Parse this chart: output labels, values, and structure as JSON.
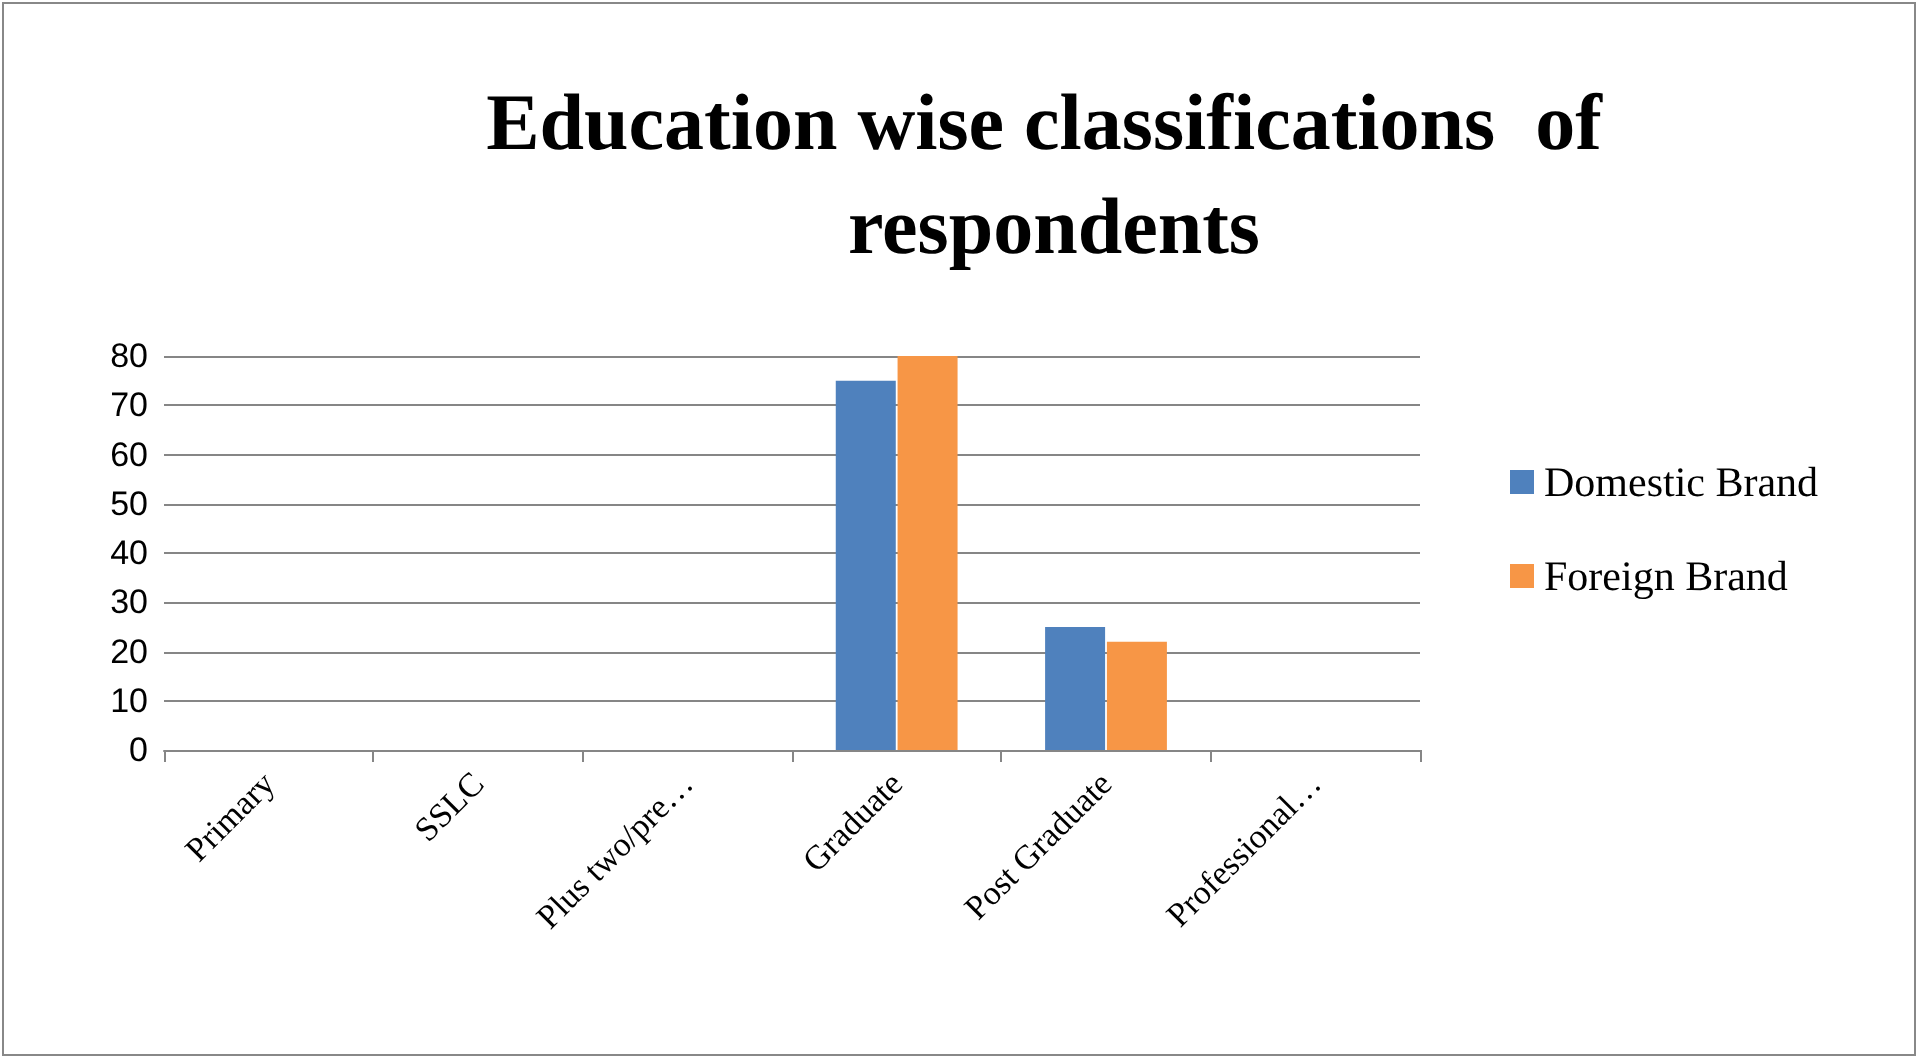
{
  "chart_data": {
    "type": "bar",
    "title": "Education wise classifications  of respondents",
    "categories": [
      "Primary",
      "SSLC",
      "Plus two/pre…",
      "Graduate",
      "Post Graduate",
      "Professional…"
    ],
    "series": [
      {
        "name": "Domestic Brand",
        "color": "#4f81bd",
        "values": [
          0,
          0,
          0,
          75,
          25,
          0
        ]
      },
      {
        "name": "Foreign Brand",
        "color": "#f79646",
        "values": [
          0,
          0,
          0,
          80,
          22,
          0
        ]
      }
    ],
    "ylim": [
      0,
      80
    ],
    "yticks": [
      0,
      10,
      20,
      30,
      40,
      50,
      60,
      70,
      80
    ],
    "grid": "y",
    "legend": "right"
  }
}
